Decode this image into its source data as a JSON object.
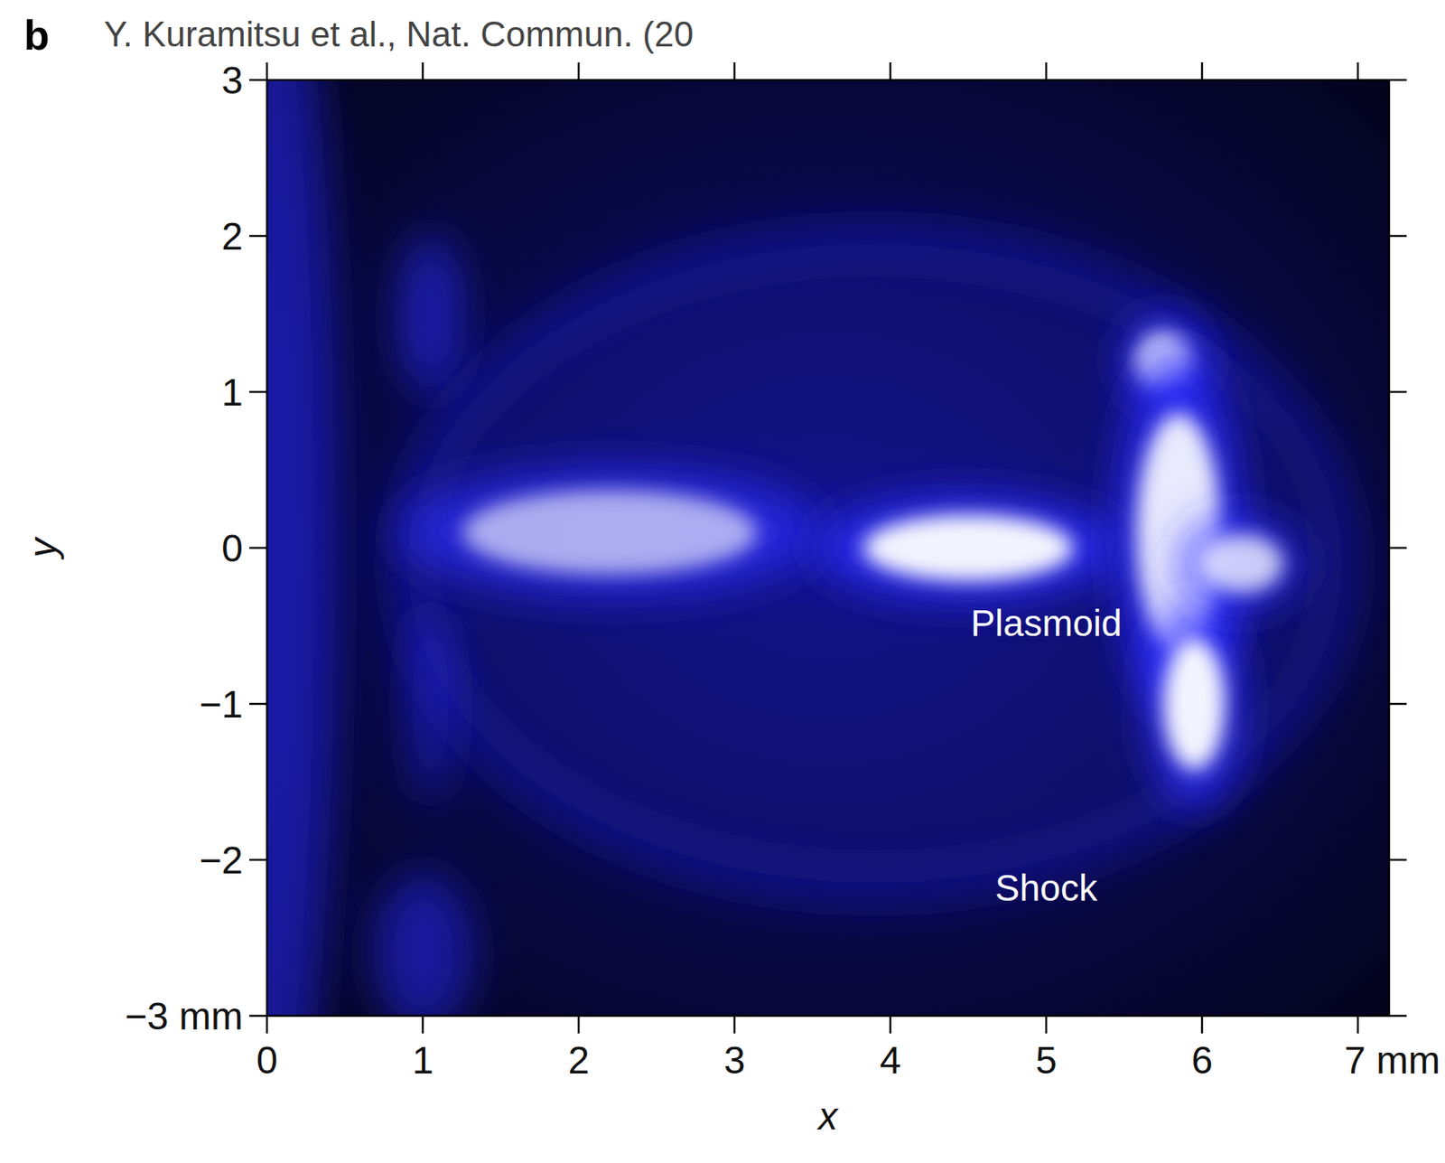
{
  "chart_data": {
    "type": "image",
    "title": "Y. Kuramitsu et al., Nat. Commun. (20",
    "panel": "b",
    "x_label": "x",
    "y_label": "y",
    "xlim": [
      0,
      7.2
    ],
    "ylim": [
      -3,
      3
    ],
    "xticks": [
      0,
      1,
      2,
      3,
      4,
      5,
      6,
      {
        "value": 7,
        "label": "7 mm"
      }
    ],
    "yticks": [
      {
        "value": -3,
        "label": "−3 mm"
      },
      {
        "value": -2,
        "label": "−2"
      },
      {
        "value": -1,
        "label": "−1"
      },
      0,
      1,
      2,
      3
    ],
    "annotations": [
      {
        "text": "Plasmoid",
        "x": 5.0,
        "y": -0.5
      },
      {
        "text": "Shock",
        "x": 5.0,
        "y": -2.2
      }
    ],
    "shell": {
      "x": 3.9,
      "y": -0.1,
      "rx": 3.0,
      "ry": 2.05,
      "intensity": 0.35
    },
    "blobs": [
      {
        "x": 0.05,
        "y": 0.0,
        "rx": 0.3,
        "ry": 3.2,
        "intensity": 0.3
      },
      {
        "x": 1.05,
        "y": 1.5,
        "rx": 0.15,
        "ry": 0.4,
        "intensity": 0.4
      },
      {
        "x": 1.05,
        "y": -1.0,
        "rx": 0.1,
        "ry": 0.5,
        "intensity": 0.25
      },
      {
        "x": 1.0,
        "y": -2.6,
        "rx": 0.25,
        "ry": 0.4,
        "intensity": 0.25
      },
      {
        "x": 2.2,
        "y": 0.1,
        "rx": 1.05,
        "ry": 0.32,
        "intensity": 0.65
      },
      {
        "x": 4.5,
        "y": 0.0,
        "rx": 0.75,
        "ry": 0.25,
        "intensity": 1.0
      },
      {
        "x": 5.75,
        "y": 1.2,
        "rx": 0.2,
        "ry": 0.22,
        "intensity": 0.85
      },
      {
        "x": 5.85,
        "y": 0.1,
        "rx": 0.3,
        "ry": 0.9,
        "intensity": 0.95
      },
      {
        "x": 5.95,
        "y": -1.0,
        "rx": 0.22,
        "ry": 0.5,
        "intensity": 1.0
      },
      {
        "x": 6.25,
        "y": -0.1,
        "rx": 0.3,
        "ry": 0.22,
        "intensity": 0.8
      }
    ]
  }
}
